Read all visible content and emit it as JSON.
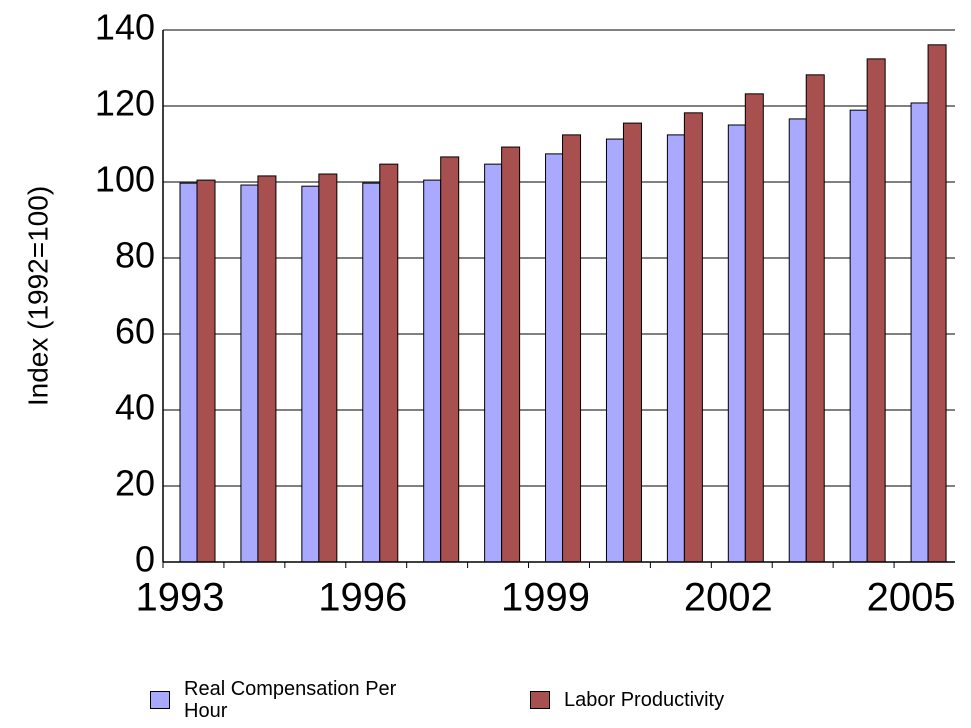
{
  "chart_data": {
    "type": "bar",
    "y_label": "Index (1992=100)",
    "categories": [
      "1993",
      null,
      null,
      "1996",
      null,
      null,
      "1999",
      null,
      null,
      "2002",
      null,
      null,
      "2005"
    ],
    "series": [
      {
        "name": "Real Compensation Per Hour",
        "color": "#a9a9ff",
        "values": [
          99.7,
          99.2,
          98.9,
          99.7,
          100.5,
          104.7,
          107.4,
          111.3,
          112.4,
          115.0,
          116.6,
          118.9,
          120.8
        ]
      },
      {
        "name": "Labor Productivity",
        "color": "#a8504f",
        "values": [
          100.5,
          101.6,
          102.1,
          104.7,
          106.6,
          109.2,
          112.4,
          115.5,
          118.2,
          123.2,
          128.2,
          132.4,
          136.1
        ]
      }
    ],
    "ylim": [
      0,
      140
    ],
    "yticks": [
      0,
      20,
      40,
      60,
      80,
      100,
      120,
      140
    ],
    "grid": true,
    "legend": "bottom"
  }
}
